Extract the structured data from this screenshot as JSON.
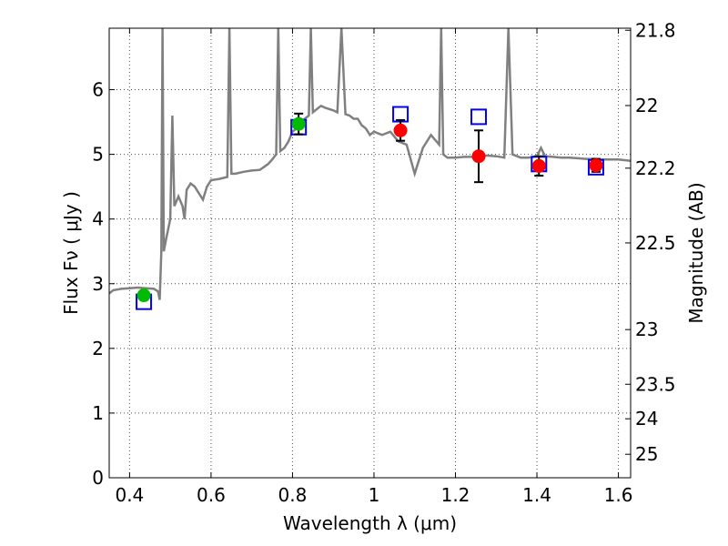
{
  "chart_data": {
    "type": "scatter",
    "xlabel": "Wavelength  λ (μm)",
    "ylabel": "Flux  Fν  ( μJy )",
    "y2label": "Magnitude (AB)",
    "xlim": [
      0.35,
      1.63
    ],
    "ylim": [
      0,
      6.95
    ],
    "grid": true,
    "x_ticks": [
      0.4,
      0.6,
      0.8,
      1.0,
      1.2,
      1.4,
      1.6
    ],
    "x_tick_labels": [
      "0.4",
      "0.6",
      "0.8",
      "1",
      "1.2",
      "1.4",
      "1.6"
    ],
    "y_ticks": [
      0,
      1,
      2,
      3,
      4,
      5,
      6
    ],
    "y_tick_labels": [
      "0",
      "1",
      "2",
      "3",
      "4",
      "5",
      "6"
    ],
    "y2_ticks": [
      {
        "label": "21.8",
        "mag": 21.8
      },
      {
        "label": "22",
        "mag": 22.0
      },
      {
        "label": "22.2",
        "mag": 22.2
      },
      {
        "label": "22.5",
        "mag": 22.5
      },
      {
        "label": "23",
        "mag": 23.0
      },
      {
        "label": "23.5",
        "mag": 23.5
      },
      {
        "label": "24",
        "mag": 24.0
      },
      {
        "label": "25",
        "mag": 25.0
      }
    ],
    "series": [
      {
        "kind": "spectrum",
        "color": "#808080",
        "points": [
          [
            0.35,
            2.85
          ],
          [
            0.36,
            2.9
          ],
          [
            0.38,
            2.92
          ],
          [
            0.4,
            2.93
          ],
          [
            0.42,
            2.94
          ],
          [
            0.44,
            2.93
          ],
          [
            0.46,
            2.92
          ],
          [
            0.47,
            2.88
          ],
          [
            0.474,
            2.75
          ],
          [
            0.478,
            3.5
          ],
          [
            0.481,
            6.95
          ],
          [
            0.484,
            3.5
          ],
          [
            0.49,
            3.7
          ],
          [
            0.5,
            4.0
          ],
          [
            0.505,
            5.6
          ],
          [
            0.51,
            4.2
          ],
          [
            0.52,
            4.35
          ],
          [
            0.53,
            4.2
          ],
          [
            0.535,
            4.0
          ],
          [
            0.54,
            4.45
          ],
          [
            0.55,
            4.55
          ],
          [
            0.56,
            4.5
          ],
          [
            0.57,
            4.4
          ],
          [
            0.58,
            4.3
          ],
          [
            0.59,
            4.5
          ],
          [
            0.6,
            4.6
          ],
          [
            0.62,
            4.62
          ],
          [
            0.64,
            4.65
          ],
          [
            0.645,
            6.95
          ],
          [
            0.65,
            4.7
          ],
          [
            0.66,
            4.7
          ],
          [
            0.68,
            4.73
          ],
          [
            0.7,
            4.75
          ],
          [
            0.72,
            4.76
          ],
          [
            0.74,
            4.85
          ],
          [
            0.75,
            4.92
          ],
          [
            0.76,
            5.0
          ],
          [
            0.765,
            6.95
          ],
          [
            0.77,
            5.05
          ],
          [
            0.78,
            5.1
          ],
          [
            0.79,
            5.2
          ],
          [
            0.8,
            5.35
          ],
          [
            0.81,
            5.4
          ],
          [
            0.82,
            5.5
          ],
          [
            0.83,
            5.55
          ],
          [
            0.84,
            5.6
          ],
          [
            0.845,
            6.95
          ],
          [
            0.85,
            5.65
          ],
          [
            0.86,
            5.7
          ],
          [
            0.87,
            5.75
          ],
          [
            0.88,
            5.72
          ],
          [
            0.89,
            5.7
          ],
          [
            0.9,
            5.68
          ],
          [
            0.91,
            5.65
          ],
          [
            0.92,
            6.95
          ],
          [
            0.93,
            5.62
          ],
          [
            0.94,
            5.6
          ],
          [
            0.95,
            5.55
          ],
          [
            0.96,
            5.55
          ],
          [
            0.97,
            5.45
          ],
          [
            0.98,
            5.4
          ],
          [
            0.99,
            5.3
          ],
          [
            1.0,
            5.35
          ],
          [
            1.02,
            5.3
          ],
          [
            1.04,
            5.35
          ],
          [
            1.06,
            5.2
          ],
          [
            1.08,
            5.15
          ],
          [
            1.1,
            4.7
          ],
          [
            1.12,
            5.1
          ],
          [
            1.14,
            5.3
          ],
          [
            1.16,
            5.15
          ],
          [
            1.165,
            6.95
          ],
          [
            1.17,
            5.0
          ],
          [
            1.18,
            4.95
          ],
          [
            1.2,
            4.95
          ],
          [
            1.22,
            4.96
          ],
          [
            1.24,
            4.96
          ],
          [
            1.26,
            4.98
          ],
          [
            1.28,
            4.98
          ],
          [
            1.3,
            4.97
          ],
          [
            1.32,
            4.95
          ],
          [
            1.33,
            6.95
          ],
          [
            1.34,
            5.0
          ],
          [
            1.36,
            4.95
          ],
          [
            1.38,
            4.95
          ],
          [
            1.4,
            4.97
          ],
          [
            1.41,
            5.1
          ],
          [
            1.42,
            4.97
          ],
          [
            1.44,
            4.96
          ],
          [
            1.46,
            4.95
          ],
          [
            1.48,
            4.95
          ],
          [
            1.5,
            4.94
          ],
          [
            1.52,
            4.93
          ],
          [
            1.54,
            4.93
          ],
          [
            1.56,
            4.92
          ],
          [
            1.58,
            4.92
          ],
          [
            1.6,
            4.92
          ],
          [
            1.63,
            4.9
          ]
        ]
      },
      {
        "kind": "model_boxes",
        "color": "#0000ff",
        "points": [
          [
            0.435,
            2.72
          ],
          [
            0.815,
            5.42
          ],
          [
            1.065,
            5.62
          ],
          [
            1.257,
            5.58
          ],
          [
            1.405,
            4.85
          ],
          [
            1.545,
            4.8
          ]
        ]
      },
      {
        "kind": "photometry",
        "color": "#00bb00",
        "points": [
          [
            0.435,
            2.82,
            0.06
          ],
          [
            0.815,
            5.47,
            0.16
          ]
        ]
      },
      {
        "kind": "photometry",
        "color": "#ff0000",
        "points": [
          [
            1.065,
            5.37,
            0.16
          ],
          [
            1.257,
            4.97,
            0.4
          ],
          [
            1.405,
            4.82,
            0.15
          ],
          [
            1.545,
            4.83,
            0.1
          ]
        ]
      }
    ]
  }
}
